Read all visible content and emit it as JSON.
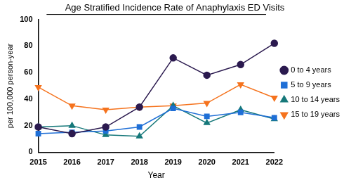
{
  "chart_data": {
    "type": "line",
    "title": "Age Stratified Incidence Rate of Anaphylaxis ED Visits",
    "x_label": "Year",
    "y_label": "per 100,000 person-year",
    "categories": [
      "2015",
      "2016",
      "2017",
      "2018",
      "2019",
      "2020",
      "2021",
      "2022"
    ],
    "series": [
      {
        "name": "0 to 4 years",
        "color": "#2b1a4f",
        "marker": "circle",
        "values": [
          19,
          14,
          19,
          34,
          71,
          58,
          66,
          82
        ]
      },
      {
        "name": "5 to 9 years",
        "color": "#1f6fd6",
        "marker": "square",
        "values": [
          14,
          15,
          16,
          19,
          33,
          27,
          30,
          26
        ]
      },
      {
        "name": "10 to 14 years",
        "color": "#16787a",
        "marker": "triangle",
        "values": [
          19,
          20,
          13,
          12,
          35,
          22,
          32,
          25
        ]
      },
      {
        "name": "15 to 19 years",
        "color": "#f5731e",
        "marker": "triangle-down",
        "values": [
          49,
          35,
          32,
          34,
          35,
          37,
          51,
          41
        ]
      }
    ],
    "ylim": [
      0,
      100
    ],
    "yticks": [
      0,
      20,
      40,
      60,
      80,
      100
    ],
    "grid": false,
    "legend": "right"
  }
}
